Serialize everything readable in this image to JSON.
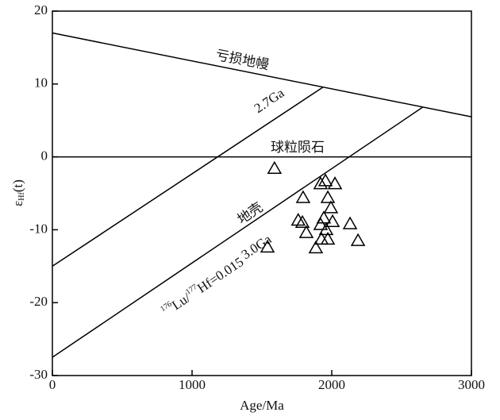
{
  "chart_data": {
    "type": "scatter",
    "x_label": "Age/Ma",
    "y_label": [
      "ε",
      "Hf",
      "(t)"
    ],
    "x": [
      1590,
      1795,
      1760,
      1790,
      1818,
      1540,
      1920,
      1955,
      2023,
      1972,
      1994,
      1943,
      1920,
      2006,
      1960,
      1926,
      1972,
      1886,
      2131,
      2188
    ],
    "values": [
      -1.6,
      -5.6,
      -8.7,
      -9.0,
      -10.4,
      -12.4,
      -3.7,
      -3.3,
      -3.7,
      -5.6,
      -7.0,
      -8.4,
      -9.3,
      -8.9,
      -10.0,
      -11.3,
      -11.3,
      -12.5,
      -9.2,
      -11.5
    ],
    "color": "#000000",
    "reference_lines": [
      {
        "label": "亏损地幔",
        "x": [
          0,
          3000
        ],
        "y": [
          17,
          5.5
        ]
      },
      {
        "label": "2.7Ga",
        "x": [
          0,
          1940
        ],
        "y": [
          -15,
          9.6
        ]
      },
      {
        "label": "球粒陨石",
        "x": [
          0,
          3000
        ],
        "y": [
          0,
          0
        ]
      },
      {
        "label": "地壳",
        "x": [
          0,
          2650
        ],
        "y": [
          -27.5,
          6.8
        ]
      }
    ],
    "lu_hf_label": [
      "176",
      "Lu/",
      "177",
      "Hf=0.015",
      "3.0Ga"
    ],
    "xlim": [
      0,
      3000
    ],
    "xticks": [
      0,
      1000,
      2000,
      3000
    ],
    "ylim": [
      -30,
      20
    ],
    "yticks": [
      -30,
      -20,
      -10,
      0,
      10,
      20
    ]
  }
}
